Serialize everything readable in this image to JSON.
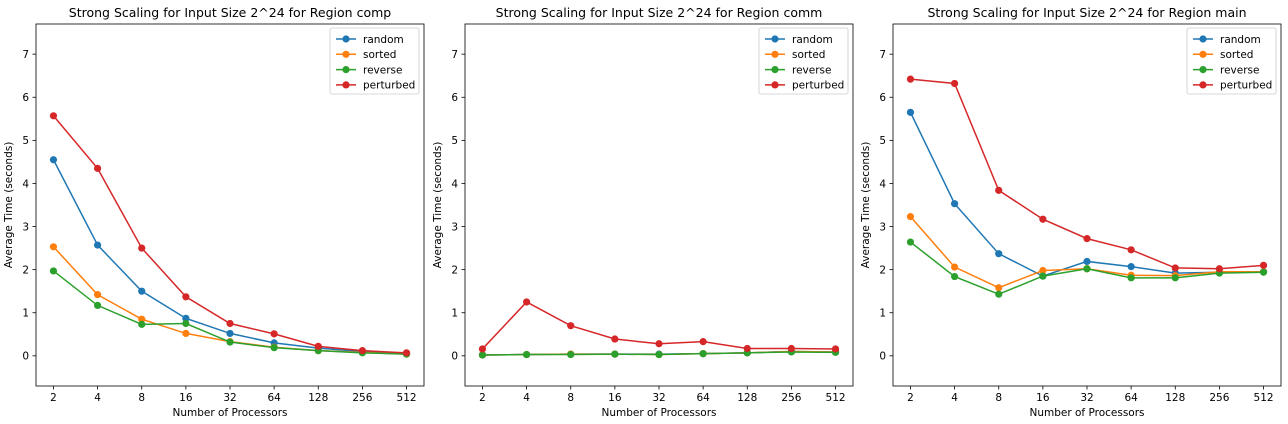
{
  "chart_data": [
    {
      "type": "line",
      "title": "Strong Scaling for Input Size 2^24 for Region comp",
      "xlabel": "Number of Processors",
      "ylabel": "Average Time (seconds)",
      "categories": [
        "2",
        "4",
        "8",
        "16",
        "32",
        "64",
        "128",
        "256",
        "512"
      ],
      "ylim": [
        -0.7,
        7.7
      ],
      "yticks": [
        "0",
        "1",
        "2",
        "3",
        "4",
        "5",
        "6",
        "7"
      ],
      "legend_position": "top-right",
      "grid": false,
      "series": [
        {
          "name": "random",
          "color": "#1f77b4",
          "values": [
            4.55,
            2.57,
            1.5,
            0.87,
            0.52,
            0.3,
            0.18,
            0.1,
            0.06
          ]
        },
        {
          "name": "sorted",
          "color": "#ff7f0e",
          "values": [
            2.53,
            1.42,
            0.85,
            0.52,
            0.33,
            0.2,
            0.12,
            0.08,
            0.04
          ]
        },
        {
          "name": "reverse",
          "color": "#2ca02c",
          "values": [
            1.97,
            1.17,
            0.73,
            0.75,
            0.32,
            0.19,
            0.12,
            0.07,
            0.04
          ]
        },
        {
          "name": "perturbed",
          "color": "#d62728",
          "values": [
            5.57,
            4.35,
            2.5,
            1.37,
            0.75,
            0.51,
            0.22,
            0.12,
            0.07
          ]
        }
      ]
    },
    {
      "type": "line",
      "title": "Strong Scaling for Input Size 2^24 for Region comm",
      "xlabel": "Number of Processors",
      "ylabel": "Average Time (seconds)",
      "categories": [
        "2",
        "4",
        "8",
        "16",
        "32",
        "64",
        "128",
        "256",
        "512"
      ],
      "ylim": [
        -0.7,
        7.7
      ],
      "yticks": [
        "0",
        "1",
        "2",
        "3",
        "4",
        "5",
        "6",
        "7"
      ],
      "legend_position": "top-right",
      "grid": false,
      "series": [
        {
          "name": "random",
          "color": "#1f77b4",
          "values": [
            0.02,
            0.03,
            0.04,
            0.04,
            0.04,
            0.05,
            0.07,
            0.1,
            0.09
          ]
        },
        {
          "name": "sorted",
          "color": "#ff7f0e",
          "values": [
            0.02,
            0.03,
            0.04,
            0.04,
            0.03,
            0.05,
            0.07,
            0.1,
            0.09
          ]
        },
        {
          "name": "reverse",
          "color": "#2ca02c",
          "values": [
            0.02,
            0.03,
            0.03,
            0.04,
            0.03,
            0.05,
            0.07,
            0.09,
            0.08
          ]
        },
        {
          "name": "perturbed",
          "color": "#d62728",
          "values": [
            0.16,
            1.25,
            0.7,
            0.39,
            0.28,
            0.33,
            0.17,
            0.17,
            0.16
          ]
        }
      ]
    },
    {
      "type": "line",
      "title": "Strong Scaling for Input Size 2^24 for Region main",
      "xlabel": "Number of Processors",
      "ylabel": "Average Time (seconds)",
      "categories": [
        "2",
        "4",
        "8",
        "16",
        "32",
        "64",
        "128",
        "256",
        "512"
      ],
      "ylim": [
        -0.7,
        7.7
      ],
      "yticks": [
        "0",
        "1",
        "2",
        "3",
        "4",
        "5",
        "6",
        "7"
      ],
      "legend_position": "top-right",
      "grid": false,
      "series": [
        {
          "name": "random",
          "color": "#1f77b4",
          "values": [
            5.65,
            3.53,
            2.37,
            1.85,
            2.19,
            2.07,
            1.92,
            1.94,
            1.95
          ]
        },
        {
          "name": "sorted",
          "color": "#ff7f0e",
          "values": [
            3.23,
            2.06,
            1.58,
            1.98,
            2.02,
            1.87,
            1.86,
            1.95,
            1.95
          ]
        },
        {
          "name": "reverse",
          "color": "#2ca02c",
          "values": [
            2.64,
            1.84,
            1.43,
            1.85,
            2.02,
            1.81,
            1.81,
            1.92,
            1.94
          ]
        },
        {
          "name": "perturbed",
          "color": "#d62728",
          "values": [
            6.42,
            6.32,
            3.84,
            3.17,
            2.72,
            2.46,
            2.04,
            2.02,
            2.1
          ]
        }
      ]
    }
  ]
}
